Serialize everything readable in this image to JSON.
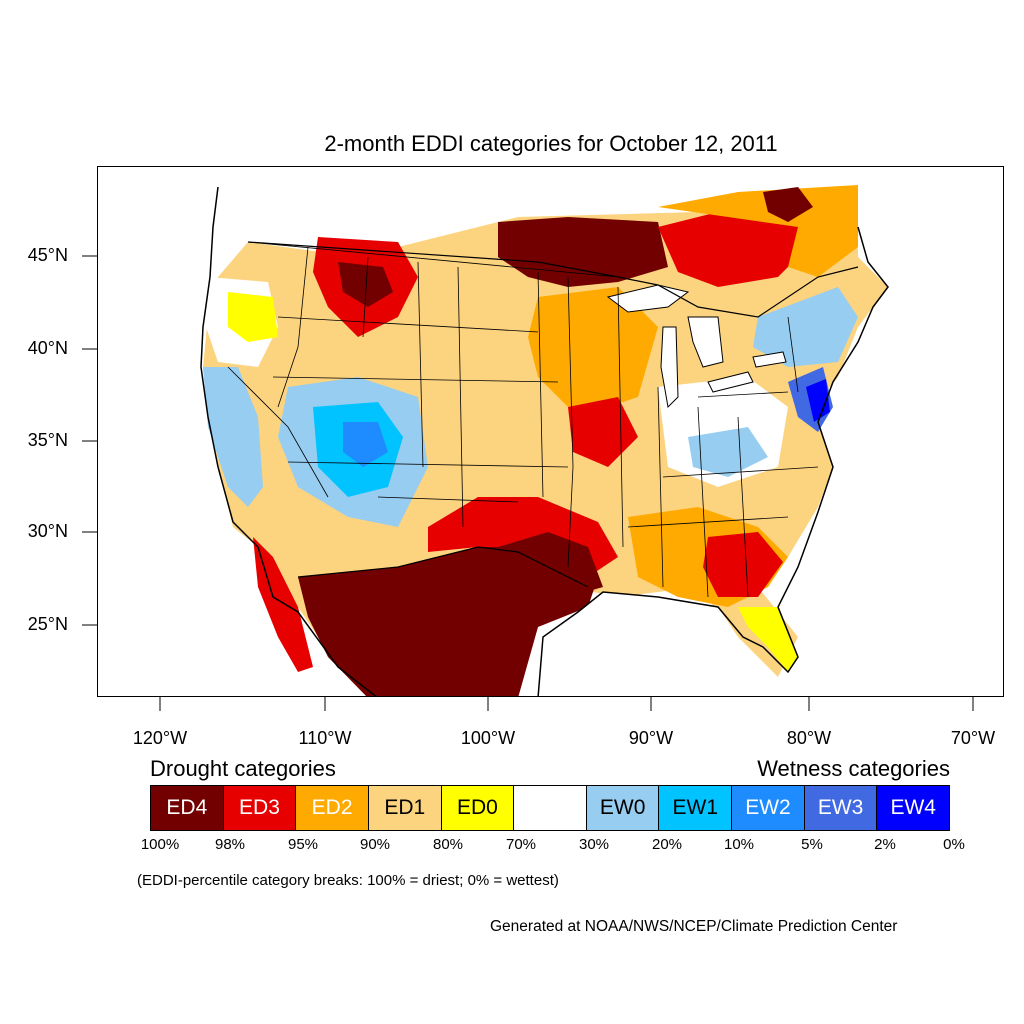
{
  "title": "2-month EDDI categories for October 12, 2011",
  "latitude_labels": [
    "45°N",
    "40°N",
    "35°N",
    "30°N",
    "25°N"
  ],
  "longitude_labels": [
    "120°W",
    "110°W",
    "100°W",
    "90°W",
    "80°W",
    "70°W"
  ],
  "legend": {
    "drought_heading": "Drought categories",
    "wetness_heading": "Wetness categories",
    "categories": [
      {
        "label": "ED4",
        "color": "#730000",
        "text_color": "#ffffff"
      },
      {
        "label": "ED3",
        "color": "#e60000",
        "text_color": "#ffffff"
      },
      {
        "label": "ED2",
        "color": "#ffaa00",
        "text_color": "#ffffff"
      },
      {
        "label": "ED1",
        "color": "#fcd37f",
        "text_color": "#000000"
      },
      {
        "label": "ED0",
        "color": "#ffff00",
        "text_color": "#000000"
      },
      {
        "label": "",
        "color": "#ffffff",
        "text_color": "#000000"
      },
      {
        "label": "EW0",
        "color": "#96cdf0",
        "text_color": "#000000"
      },
      {
        "label": "EW1",
        "color": "#00c3ff",
        "text_color": "#000000"
      },
      {
        "label": "EW2",
        "color": "#1e8cff",
        "text_color": "#ffffff"
      },
      {
        "label": "EW3",
        "color": "#4169e1",
        "text_color": "#ffffff"
      },
      {
        "label": "EW4",
        "color": "#0000ff",
        "text_color": "#ffffff"
      }
    ],
    "percentile_breaks": [
      "100%",
      "98%",
      "95%",
      "90%",
      "80%",
      "70%",
      "30%",
      "20%",
      "10%",
      "5%",
      "2%",
      "0%"
    ]
  },
  "note": "(EDDI-percentile category breaks: 100% = driest; 0% = wettest)",
  "credit": "Generated at NOAA/NWS/NCEP/Climate Prediction Center"
}
